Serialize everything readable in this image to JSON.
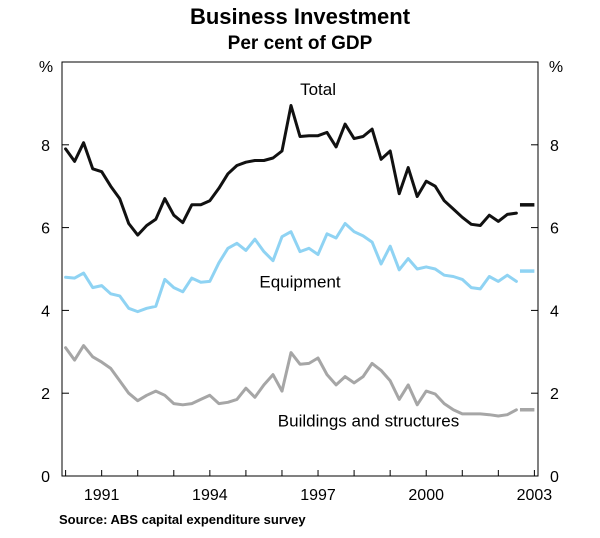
{
  "chart_data": {
    "type": "line",
    "title": "Business Investment",
    "subtitle": "Per cent of GDP",
    "ylabel_left": "%",
    "ylabel_right": "%",
    "ylim": [
      0,
      10
    ],
    "xlim": [
      1989.9,
      2003.1
    ],
    "yticks": [
      0,
      2,
      4,
      6,
      8
    ],
    "xticks": [
      1991,
      1994,
      1997,
      2000,
      2003
    ],
    "source": "Source: ABS capital expenditure survey",
    "series": [
      {
        "name": "Total",
        "color": "#111111",
        "points": [
          [
            1990.0,
            7.9
          ],
          [
            1990.25,
            7.6
          ],
          [
            1990.5,
            8.05
          ],
          [
            1990.75,
            7.42
          ],
          [
            1991.0,
            7.35
          ],
          [
            1991.25,
            7.0
          ],
          [
            1991.5,
            6.7
          ],
          [
            1991.75,
            6.1
          ],
          [
            1992.0,
            5.82
          ],
          [
            1992.25,
            6.05
          ],
          [
            1992.5,
            6.2
          ],
          [
            1992.75,
            6.7
          ],
          [
            1993.0,
            6.3
          ],
          [
            1993.25,
            6.12
          ],
          [
            1993.5,
            6.55
          ],
          [
            1993.75,
            6.55
          ],
          [
            1994.0,
            6.65
          ],
          [
            1994.25,
            6.95
          ],
          [
            1994.5,
            7.3
          ],
          [
            1994.75,
            7.5
          ],
          [
            1995.0,
            7.58
          ],
          [
            1995.25,
            7.62
          ],
          [
            1995.5,
            7.62
          ],
          [
            1995.75,
            7.68
          ],
          [
            1996.0,
            7.85
          ],
          [
            1996.25,
            8.95
          ],
          [
            1996.5,
            8.2
          ],
          [
            1996.75,
            8.22
          ],
          [
            1997.0,
            8.22
          ],
          [
            1997.25,
            8.3
          ],
          [
            1997.5,
            7.95
          ],
          [
            1997.75,
            8.5
          ],
          [
            1998.0,
            8.15
          ],
          [
            1998.25,
            8.2
          ],
          [
            1998.5,
            8.38
          ],
          [
            1998.75,
            7.65
          ],
          [
            1999.0,
            7.85
          ],
          [
            1999.25,
            6.82
          ],
          [
            1999.5,
            7.45
          ],
          [
            1999.75,
            6.75
          ],
          [
            2000.0,
            7.12
          ],
          [
            2000.25,
            7.0
          ],
          [
            2000.5,
            6.65
          ],
          [
            2000.75,
            6.45
          ],
          [
            2001.0,
            6.25
          ],
          [
            2001.25,
            6.08
          ],
          [
            2001.5,
            6.05
          ],
          [
            2001.75,
            6.3
          ],
          [
            2002.0,
            6.15
          ],
          [
            2002.25,
            6.32
          ],
          [
            2002.5,
            6.35
          ]
        ],
        "forecast": {
          "start": 2002.6,
          "end": 2003.0,
          "value": 6.55
        }
      },
      {
        "name": "Equipment",
        "color": "#8fd3f3",
        "points": [
          [
            1990.0,
            4.8
          ],
          [
            1990.25,
            4.78
          ],
          [
            1990.5,
            4.9
          ],
          [
            1990.75,
            4.55
          ],
          [
            1991.0,
            4.6
          ],
          [
            1991.25,
            4.4
          ],
          [
            1991.5,
            4.35
          ],
          [
            1991.75,
            4.05
          ],
          [
            1992.0,
            3.97
          ],
          [
            1992.25,
            4.05
          ],
          [
            1992.5,
            4.1
          ],
          [
            1992.75,
            4.75
          ],
          [
            1993.0,
            4.55
          ],
          [
            1993.25,
            4.45
          ],
          [
            1993.5,
            4.78
          ],
          [
            1993.75,
            4.68
          ],
          [
            1994.0,
            4.7
          ],
          [
            1994.25,
            5.15
          ],
          [
            1994.5,
            5.5
          ],
          [
            1994.75,
            5.62
          ],
          [
            1995.0,
            5.45
          ],
          [
            1995.25,
            5.72
          ],
          [
            1995.5,
            5.42
          ],
          [
            1995.75,
            5.2
          ],
          [
            1996.0,
            5.78
          ],
          [
            1996.25,
            5.9
          ],
          [
            1996.5,
            5.42
          ],
          [
            1996.75,
            5.5
          ],
          [
            1997.0,
            5.35
          ],
          [
            1997.25,
            5.85
          ],
          [
            1997.5,
            5.75
          ],
          [
            1997.75,
            6.1
          ],
          [
            1998.0,
            5.9
          ],
          [
            1998.25,
            5.8
          ],
          [
            1998.5,
            5.65
          ],
          [
            1998.75,
            5.12
          ],
          [
            1999.0,
            5.55
          ],
          [
            1999.25,
            4.98
          ],
          [
            1999.5,
            5.25
          ],
          [
            1999.75,
            5.0
          ],
          [
            2000.0,
            5.05
          ],
          [
            2000.25,
            5.0
          ],
          [
            2000.5,
            4.85
          ],
          [
            2000.75,
            4.82
          ],
          [
            2001.0,
            4.75
          ],
          [
            2001.25,
            4.55
          ],
          [
            2001.5,
            4.52
          ],
          [
            2001.75,
            4.82
          ],
          [
            2002.0,
            4.7
          ],
          [
            2002.25,
            4.85
          ],
          [
            2002.5,
            4.7
          ]
        ],
        "forecast": {
          "start": 2002.6,
          "end": 2003.0,
          "value": 4.95
        }
      },
      {
        "name": "Buildings and structures",
        "color": "#a6a6a6",
        "points": [
          [
            1990.0,
            3.1
          ],
          [
            1990.25,
            2.8
          ],
          [
            1990.5,
            3.15
          ],
          [
            1990.75,
            2.88
          ],
          [
            1991.0,
            2.75
          ],
          [
            1991.25,
            2.6
          ],
          [
            1991.5,
            2.3
          ],
          [
            1991.75,
            2.0
          ],
          [
            1992.0,
            1.82
          ],
          [
            1992.25,
            1.95
          ],
          [
            1992.5,
            2.05
          ],
          [
            1992.75,
            1.95
          ],
          [
            1993.0,
            1.75
          ],
          [
            1993.25,
            1.72
          ],
          [
            1993.5,
            1.75
          ],
          [
            1993.75,
            1.85
          ],
          [
            1994.0,
            1.95
          ],
          [
            1994.25,
            1.75
          ],
          [
            1994.5,
            1.78
          ],
          [
            1994.75,
            1.85
          ],
          [
            1995.0,
            2.12
          ],
          [
            1995.25,
            1.9
          ],
          [
            1995.5,
            2.2
          ],
          [
            1995.75,
            2.45
          ],
          [
            1996.0,
            2.05
          ],
          [
            1996.25,
            2.98
          ],
          [
            1996.5,
            2.7
          ],
          [
            1996.75,
            2.72
          ],
          [
            1997.0,
            2.85
          ],
          [
            1997.25,
            2.45
          ],
          [
            1997.5,
            2.2
          ],
          [
            1997.75,
            2.4
          ],
          [
            1998.0,
            2.25
          ],
          [
            1998.25,
            2.4
          ],
          [
            1998.5,
            2.72
          ],
          [
            1998.75,
            2.55
          ],
          [
            1999.0,
            2.3
          ],
          [
            1999.25,
            1.85
          ],
          [
            1999.5,
            2.2
          ],
          [
            1999.75,
            1.72
          ],
          [
            2000.0,
            2.05
          ],
          [
            2000.25,
            1.98
          ],
          [
            2000.5,
            1.75
          ],
          [
            2000.75,
            1.6
          ],
          [
            2001.0,
            1.5
          ],
          [
            2001.25,
            1.5
          ],
          [
            2001.5,
            1.5
          ],
          [
            2001.75,
            1.48
          ],
          [
            2002.0,
            1.45
          ],
          [
            2002.25,
            1.48
          ],
          [
            2002.5,
            1.6
          ]
        ],
        "forecast": {
          "start": 2002.6,
          "end": 2003.0,
          "value": 1.6
        }
      }
    ],
    "labels": [
      {
        "text": "Total",
        "x": 1997.0,
        "y": 9.2
      },
      {
        "text": "Equipment",
        "x": 1996.5,
        "y": 4.55
      },
      {
        "text": "Buildings and structures",
        "x": 1998.4,
        "y": 1.2
      }
    ]
  }
}
